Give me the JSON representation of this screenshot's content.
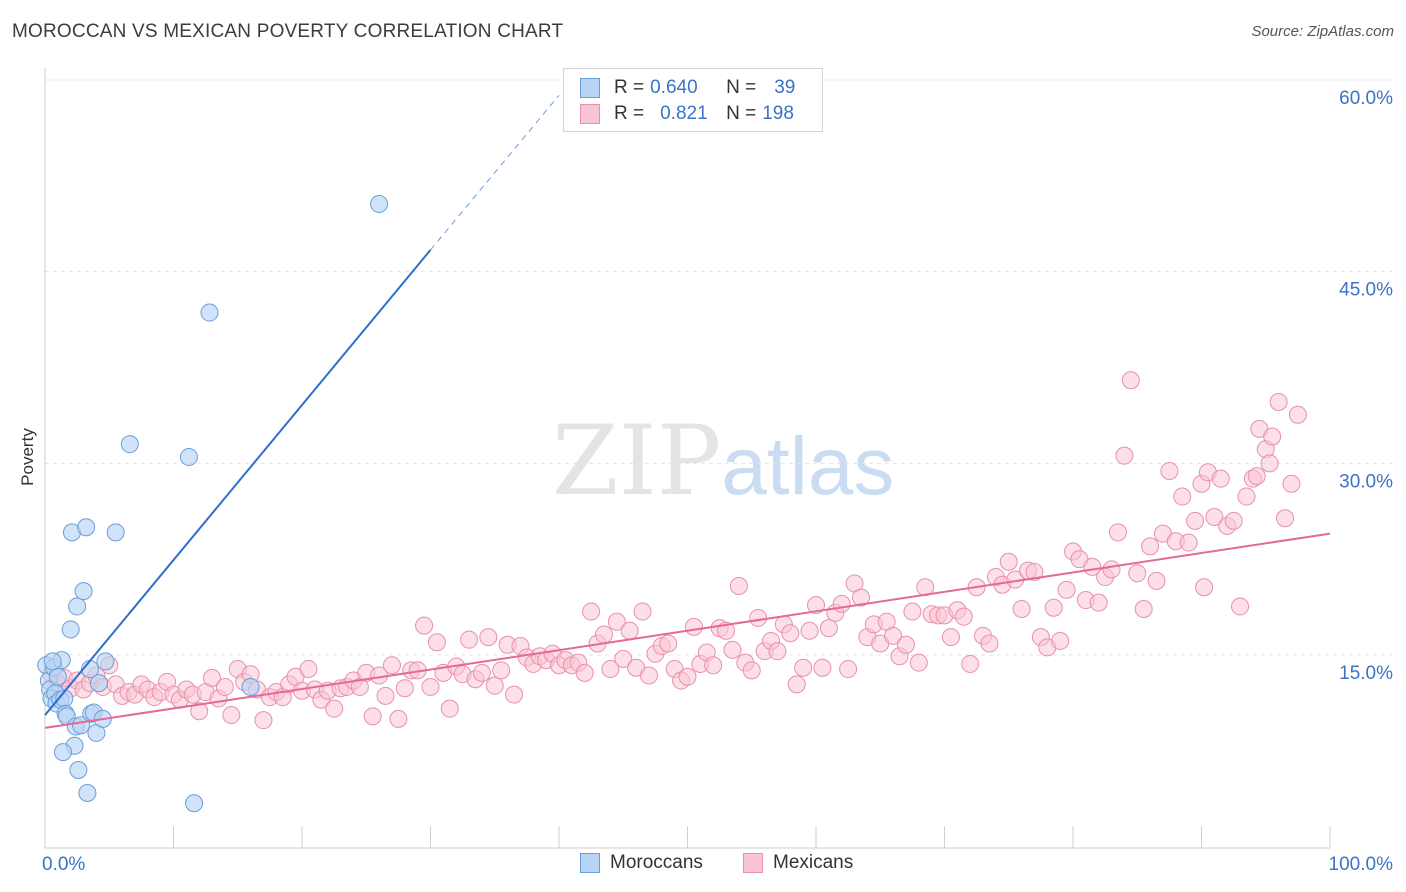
{
  "header": {
    "title": "MOROCCAN VS MEXICAN POVERTY CORRELATION CHART",
    "source": "Source: ZipAtlas.com"
  },
  "watermark": {
    "zip": "ZIP",
    "atlas": "atlas"
  },
  "legend": {
    "moroccans": {
      "r_label": "R =",
      "r_value": "0.640",
      "n_label": "N =",
      "n_value": "39"
    },
    "mexicans": {
      "r_label": "R =",
      "r_value": "0.821",
      "n_label": "N =",
      "n_value": "198"
    }
  },
  "bottom_legend": {
    "moroccans": "Moroccans",
    "mexicans": "Mexicans"
  },
  "colors": {
    "moroccan_fill": "#b8d4f5",
    "moroccan_stroke": "#6a9ed8",
    "moroccan_line": "#2f6fcc",
    "mexican_fill": "#f9c4d4",
    "mexican_stroke": "#e890ad",
    "mexican_line": "#e46a94",
    "tick_label": "#3a73c7"
  },
  "chart_data": {
    "type": "scatter",
    "title": "MOROCCAN VS MEXICAN POVERTY CORRELATION CHART",
    "xlabel": "",
    "ylabel": "Poverty",
    "xlim": [
      0,
      100
    ],
    "ylim": [
      0,
      60
    ],
    "x_tick_labels": [
      "0.0%",
      "100.0%"
    ],
    "y_ticks": [
      15,
      30,
      45,
      60
    ],
    "y_tick_labels": [
      "15.0%",
      "30.0%",
      "45.0%",
      "60.0%"
    ],
    "grid": true,
    "series": [
      {
        "name": "Moroccans",
        "r": 0.64,
        "n": 39,
        "trend": {
          "x0": 0,
          "y0": 10.3,
          "x1": 30,
          "y1": 46.7,
          "x_dash_end": 40,
          "y_dash_end": 58.8
        },
        "points": [
          [
            0.1,
            14.2
          ],
          [
            0.3,
            13.0
          ],
          [
            0.4,
            12.3
          ],
          [
            0.5,
            11.6
          ],
          [
            0.7,
            14.0
          ],
          [
            0.8,
            12.0
          ],
          [
            0.9,
            11.2
          ],
          [
            1.0,
            13.3
          ],
          [
            1.2,
            11.5
          ],
          [
            1.3,
            14.6
          ],
          [
            1.5,
            11.6
          ],
          [
            1.6,
            10.4
          ],
          [
            1.7,
            10.2
          ],
          [
            2.0,
            17.0
          ],
          [
            2.1,
            24.6
          ],
          [
            2.3,
            7.9
          ],
          [
            2.4,
            9.4
          ],
          [
            2.5,
            18.8
          ],
          [
            2.6,
            6.0
          ],
          [
            2.8,
            9.5
          ],
          [
            3.0,
            20.0
          ],
          [
            3.2,
            25.0
          ],
          [
            3.3,
            4.2
          ],
          [
            3.5,
            13.9
          ],
          [
            3.6,
            10.4
          ],
          [
            3.8,
            10.5
          ],
          [
            4.0,
            8.9
          ],
          [
            4.2,
            12.8
          ],
          [
            4.5,
            10.0
          ],
          [
            4.7,
            14.5
          ],
          [
            5.5,
            24.6
          ],
          [
            6.6,
            31.5
          ],
          [
            11.2,
            30.5
          ],
          [
            11.6,
            3.4
          ],
          [
            12.8,
            41.8
          ],
          [
            16.0,
            12.5
          ],
          [
            1.4,
            7.4
          ],
          [
            0.6,
            14.5
          ],
          [
            26.0,
            50.3
          ]
        ]
      },
      {
        "name": "Mexicans",
        "r": 0.821,
        "n": 198,
        "trend": {
          "x0": 0,
          "y0": 9.3,
          "x1": 100,
          "y1": 24.5
        },
        "points": [
          [
            0.5,
            13.5
          ],
          [
            1.0,
            12.8
          ],
          [
            1.5,
            13.2
          ],
          [
            2.0,
            12.4
          ],
          [
            2.5,
            13.0
          ],
          [
            3.0,
            12.3
          ],
          [
            3.5,
            12.8
          ],
          [
            4.0,
            13.4
          ],
          [
            4.5,
            12.5
          ],
          [
            5.0,
            14.2
          ],
          [
            5.5,
            12.7
          ],
          [
            6.0,
            11.8
          ],
          [
            6.5,
            12.1
          ],
          [
            7.0,
            11.9
          ],
          [
            7.5,
            12.7
          ],
          [
            8.0,
            12.3
          ],
          [
            8.5,
            11.7
          ],
          [
            9.0,
            12.1
          ],
          [
            9.5,
            12.9
          ],
          [
            10.0,
            11.9
          ],
          [
            10.5,
            11.5
          ],
          [
            11.0,
            12.3
          ],
          [
            11.5,
            11.9
          ],
          [
            12.0,
            10.6
          ],
          [
            12.5,
            12.1
          ],
          [
            13.0,
            13.2
          ],
          [
            13.5,
            11.6
          ],
          [
            14.0,
            12.5
          ],
          [
            14.5,
            10.3
          ],
          [
            15.0,
            13.9
          ],
          [
            15.5,
            12.9
          ],
          [
            16.0,
            13.5
          ],
          [
            16.5,
            12.3
          ],
          [
            17.0,
            9.9
          ],
          [
            17.5,
            11.7
          ],
          [
            18.0,
            12.1
          ],
          [
            18.5,
            11.7
          ],
          [
            19.0,
            12.7
          ],
          [
            19.5,
            13.3
          ],
          [
            20.0,
            12.2
          ],
          [
            20.5,
            13.9
          ],
          [
            21.0,
            12.3
          ],
          [
            21.5,
            11.5
          ],
          [
            22.0,
            12.2
          ],
          [
            22.5,
            10.8
          ],
          [
            23.0,
            12.4
          ],
          [
            23.5,
            12.5
          ],
          [
            24.0,
            13.0
          ],
          [
            24.5,
            12.5
          ],
          [
            25.0,
            13.6
          ],
          [
            25.5,
            10.2
          ],
          [
            26.0,
            13.4
          ],
          [
            26.5,
            11.8
          ],
          [
            27.0,
            14.2
          ],
          [
            27.5,
            10.0
          ],
          [
            28.0,
            12.4
          ],
          [
            28.5,
            13.8
          ],
          [
            29.0,
            13.8
          ],
          [
            29.5,
            17.3
          ],
          [
            30.0,
            12.5
          ],
          [
            30.5,
            16.0
          ],
          [
            31.0,
            13.6
          ],
          [
            31.5,
            10.8
          ],
          [
            32.0,
            14.1
          ],
          [
            32.5,
            13.5
          ],
          [
            33.0,
            16.2
          ],
          [
            33.5,
            13.1
          ],
          [
            34.0,
            13.6
          ],
          [
            34.5,
            16.4
          ],
          [
            35.0,
            12.6
          ],
          [
            35.5,
            13.8
          ],
          [
            36.0,
            15.8
          ],
          [
            36.5,
            11.9
          ],
          [
            37.0,
            15.7
          ],
          [
            37.5,
            14.8
          ],
          [
            38.0,
            14.3
          ],
          [
            38.5,
            14.9
          ],
          [
            39.0,
            14.6
          ],
          [
            39.5,
            15.1
          ],
          [
            40.0,
            14.2
          ],
          [
            40.5,
            14.6
          ],
          [
            41.0,
            14.2
          ],
          [
            41.5,
            14.4
          ],
          [
            42.0,
            13.6
          ],
          [
            42.5,
            18.4
          ],
          [
            43.0,
            15.9
          ],
          [
            43.5,
            16.6
          ],
          [
            44.0,
            13.9
          ],
          [
            44.5,
            17.6
          ],
          [
            45.0,
            14.7
          ],
          [
            45.5,
            16.9
          ],
          [
            46.0,
            14.0
          ],
          [
            46.5,
            18.4
          ],
          [
            47.0,
            13.4
          ],
          [
            47.5,
            15.1
          ],
          [
            48.0,
            15.7
          ],
          [
            48.5,
            15.9
          ],
          [
            49.0,
            13.9
          ],
          [
            49.5,
            13.0
          ],
          [
            50.0,
            13.3
          ],
          [
            50.5,
            17.2
          ],
          [
            51.0,
            14.3
          ],
          [
            51.5,
            15.2
          ],
          [
            52.0,
            14.2
          ],
          [
            52.5,
            17.1
          ],
          [
            53.0,
            16.9
          ],
          [
            53.5,
            15.4
          ],
          [
            54.0,
            20.4
          ],
          [
            54.5,
            14.4
          ],
          [
            55.0,
            13.8
          ],
          [
            55.5,
            17.9
          ],
          [
            56.0,
            15.3
          ],
          [
            56.5,
            16.1
          ],
          [
            57.0,
            15.3
          ],
          [
            57.5,
            17.4
          ],
          [
            58.0,
            16.7
          ],
          [
            58.5,
            12.7
          ],
          [
            59.0,
            14.0
          ],
          [
            59.5,
            16.9
          ],
          [
            60.0,
            18.9
          ],
          [
            60.5,
            14.0
          ],
          [
            61.0,
            17.1
          ],
          [
            61.5,
            18.3
          ],
          [
            62.0,
            19.0
          ],
          [
            62.5,
            13.9
          ],
          [
            63.0,
            20.6
          ],
          [
            63.5,
            19.5
          ],
          [
            64.0,
            16.4
          ],
          [
            64.5,
            17.4
          ],
          [
            65.0,
            15.9
          ],
          [
            65.5,
            17.6
          ],
          [
            66.0,
            16.5
          ],
          [
            66.5,
            14.9
          ],
          [
            67.0,
            15.8
          ],
          [
            67.5,
            18.4
          ],
          [
            68.0,
            14.4
          ],
          [
            68.5,
            20.3
          ],
          [
            69.0,
            18.2
          ],
          [
            69.5,
            18.1
          ],
          [
            70.0,
            18.1
          ],
          [
            70.5,
            16.4
          ],
          [
            71.0,
            18.5
          ],
          [
            71.5,
            18.0
          ],
          [
            72.0,
            14.3
          ],
          [
            72.5,
            20.3
          ],
          [
            73.0,
            16.5
          ],
          [
            73.5,
            15.9
          ],
          [
            74.0,
            21.1
          ],
          [
            74.5,
            20.5
          ],
          [
            75.0,
            22.3
          ],
          [
            75.5,
            20.9
          ],
          [
            76.0,
            18.6
          ],
          [
            76.5,
            21.6
          ],
          [
            77.0,
            21.5
          ],
          [
            77.5,
            16.4
          ],
          [
            78.0,
            15.6
          ],
          [
            78.5,
            18.7
          ],
          [
            79.0,
            16.1
          ],
          [
            79.5,
            20.1
          ],
          [
            80.0,
            23.1
          ],
          [
            80.5,
            22.5
          ],
          [
            81.0,
            19.3
          ],
          [
            81.5,
            21.9
          ],
          [
            82.0,
            19.1
          ],
          [
            82.5,
            21.1
          ],
          [
            83.0,
            21.7
          ],
          [
            83.5,
            24.6
          ],
          [
            84.0,
            30.6
          ],
          [
            84.5,
            36.5
          ],
          [
            85.0,
            21.4
          ],
          [
            85.5,
            18.6
          ],
          [
            86.0,
            23.5
          ],
          [
            86.5,
            20.8
          ],
          [
            87.0,
            24.5
          ],
          [
            87.5,
            29.4
          ],
          [
            88.0,
            23.9
          ],
          [
            88.5,
            27.4
          ],
          [
            89.0,
            23.8
          ],
          [
            89.5,
            25.5
          ],
          [
            90.0,
            28.4
          ],
          [
            90.5,
            29.3
          ],
          [
            91.0,
            25.8
          ],
          [
            91.5,
            28.8
          ],
          [
            92.0,
            25.1
          ],
          [
            92.5,
            25.5
          ],
          [
            93.0,
            18.8
          ],
          [
            93.5,
            27.4
          ],
          [
            94.0,
            28.8
          ],
          [
            94.5,
            32.7
          ],
          [
            95.0,
            31.1
          ],
          [
            95.5,
            32.1
          ],
          [
            96.0,
            34.8
          ],
          [
            96.5,
            25.7
          ],
          [
            97.0,
            28.4
          ],
          [
            97.5,
            33.8
          ],
          [
            95.3,
            30.0
          ],
          [
            94.3,
            29.0
          ],
          [
            90.2,
            20.3
          ]
        ]
      }
    ]
  }
}
